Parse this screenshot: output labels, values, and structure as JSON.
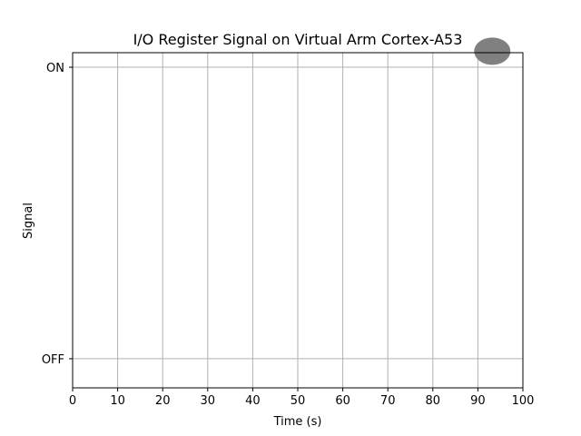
{
  "chart_data": {
    "type": "scatter",
    "title": "I/O Register Signal on Virtual Arm Cortex-A53",
    "xlabel": "Time (s)",
    "ylabel": "Signal",
    "xlim": [
      0,
      100
    ],
    "ylim": [
      -0.1,
      1.05
    ],
    "x_ticks": [
      0,
      10,
      20,
      30,
      40,
      50,
      60,
      70,
      80,
      90,
      100
    ],
    "y_ticks": [
      {
        "value": 0,
        "label": "OFF"
      },
      {
        "value": 1,
        "label": "ON"
      }
    ],
    "grid": true,
    "points": [
      {
        "x": 93,
        "y": 1.055
      }
    ],
    "colors": {
      "marker": "#808080",
      "grid": "#b0b0b0",
      "axis": "#000000"
    }
  }
}
